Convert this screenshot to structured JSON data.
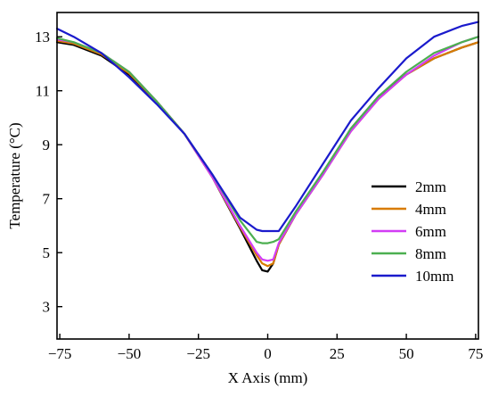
{
  "chart_data": {
    "type": "line",
    "xlabel": "X Axis (mm)",
    "ylabel": "Temperature (°C)",
    "xlim": [
      -76,
      76
    ],
    "ylim": [
      1.8,
      13.9
    ],
    "xticks": [
      -75,
      -50,
      -25,
      0,
      25,
      50,
      75
    ],
    "yticks": [
      3,
      5,
      7,
      9,
      11,
      13
    ],
    "xtick_labels": [
      "−75",
      "−50",
      "−25",
      "0",
      "25",
      "50",
      "75"
    ],
    "ytick_labels": [
      "3",
      "5",
      "7",
      "9",
      "11",
      "13"
    ],
    "grid": false,
    "legend_position": "right",
    "series": [
      {
        "name": "2mm",
        "color": "#000000",
        "x": [
          -76,
          -70,
          -60,
          -50,
          -40,
          -30,
          -20,
          -10,
          -4,
          -2,
          0,
          2,
          4,
          10,
          20,
          30,
          40,
          50,
          60,
          70,
          76
        ],
        "y": [
          12.8,
          12.7,
          12.3,
          11.6,
          10.6,
          9.4,
          7.8,
          5.9,
          4.7,
          4.35,
          4.3,
          4.6,
          5.3,
          6.4,
          7.9,
          9.6,
          10.8,
          11.6,
          12.2,
          12.6,
          12.8
        ]
      },
      {
        "name": "4mm",
        "color": "#d87b00",
        "x": [
          -76,
          -70,
          -60,
          -50,
          -40,
          -30,
          -20,
          -10,
          -4,
          -2,
          0,
          2,
          4,
          10,
          20,
          30,
          40,
          50,
          60,
          70,
          76
        ],
        "y": [
          12.85,
          12.75,
          12.35,
          11.65,
          10.6,
          9.4,
          7.8,
          5.95,
          4.9,
          4.6,
          4.5,
          4.6,
          5.3,
          6.4,
          7.9,
          9.5,
          10.7,
          11.6,
          12.2,
          12.6,
          12.8
        ]
      },
      {
        "name": "6mm",
        "color": "#d23cf5",
        "x": [
          -76,
          -70,
          -60,
          -50,
          -40,
          -30,
          -20,
          -10,
          -4,
          -2,
          0,
          2,
          4,
          10,
          20,
          30,
          40,
          50,
          60,
          70,
          76
        ],
        "y": [
          12.9,
          12.8,
          12.4,
          11.7,
          10.6,
          9.4,
          7.8,
          6.0,
          5.0,
          4.75,
          4.7,
          4.75,
          5.35,
          6.4,
          7.9,
          9.5,
          10.7,
          11.6,
          12.3,
          12.8,
          13.0
        ]
      },
      {
        "name": "8mm",
        "color": "#4caf50",
        "x": [
          -76,
          -70,
          -60,
          -50,
          -40,
          -30,
          -20,
          -10,
          -4,
          -2,
          0,
          2,
          4,
          10,
          20,
          30,
          40,
          50,
          60,
          70,
          76
        ],
        "y": [
          12.95,
          12.8,
          12.4,
          11.7,
          10.6,
          9.4,
          7.9,
          6.2,
          5.4,
          5.35,
          5.35,
          5.4,
          5.5,
          6.5,
          8.0,
          9.6,
          10.8,
          11.7,
          12.4,
          12.8,
          13.0
        ]
      },
      {
        "name": "10mm",
        "color": "#1a1acc",
        "x": [
          -76,
          -70,
          -60,
          -50,
          -40,
          -30,
          -20,
          -10,
          -4,
          -2,
          0,
          2,
          4,
          10,
          20,
          30,
          40,
          50,
          60,
          70,
          76
        ],
        "y": [
          13.3,
          13.0,
          12.4,
          11.5,
          10.5,
          9.4,
          7.9,
          6.3,
          5.85,
          5.8,
          5.8,
          5.8,
          5.8,
          6.7,
          8.3,
          9.9,
          11.1,
          12.2,
          13.0,
          13.4,
          13.55
        ]
      }
    ]
  }
}
